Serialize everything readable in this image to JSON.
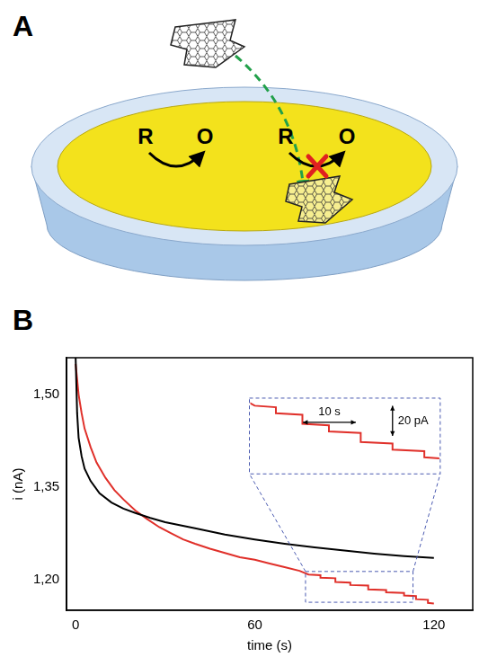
{
  "panel_a": {
    "label": "A",
    "reaction_labels": [
      "R",
      "O",
      "R",
      "O"
    ]
  },
  "chart_data": {
    "type": "line",
    "panel_label": "B",
    "x_label": "time (s)",
    "y_label": "i (nA)",
    "xlim": [
      -3,
      133
    ],
    "xticks": [
      0,
      60,
      120
    ],
    "ylim": [
      1.15,
      1.56
    ],
    "yticks": [
      {
        "value": 1.2,
        "label": "1,20"
      },
      {
        "value": 1.35,
        "label": "1,35"
      },
      {
        "value": 1.5,
        "label": "1,50"
      }
    ],
    "grid": false,
    "series": [
      {
        "color": "#000000",
        "x": [
          0,
          0.5,
          1,
          2,
          3,
          5,
          8,
          12,
          16,
          20,
          25,
          30,
          40,
          50,
          60,
          70,
          80,
          90,
          100,
          110,
          120
        ],
        "values": [
          1.56,
          1.47,
          1.43,
          1.4,
          1.38,
          1.36,
          1.34,
          1.325,
          1.315,
          1.308,
          1.3,
          1.293,
          1.283,
          1.273,
          1.265,
          1.258,
          1.252,
          1.247,
          1.242,
          1.238,
          1.235
        ]
      },
      {
        "color": "#e0302a",
        "x": [
          0,
          1,
          2,
          3,
          5,
          7,
          10,
          13,
          16,
          20,
          24,
          28,
          32,
          36,
          40,
          45,
          50,
          55,
          60,
          65,
          70,
          75,
          78,
          82,
          82,
          87,
          87,
          92,
          92,
          98,
          98,
          104,
          104,
          110,
          110,
          114,
          114,
          118,
          118,
          120
        ],
        "values": [
          1.55,
          1.5,
          1.47,
          1.445,
          1.415,
          1.39,
          1.365,
          1.345,
          1.33,
          1.312,
          1.298,
          1.285,
          1.275,
          1.265,
          1.258,
          1.25,
          1.243,
          1.236,
          1.232,
          1.226,
          1.22,
          1.214,
          1.208,
          1.207,
          1.203,
          1.202,
          1.196,
          1.195,
          1.191,
          1.19,
          1.184,
          1.183,
          1.179,
          1.178,
          1.174,
          1.173,
          1.168,
          1.167,
          1.162,
          1.161
        ]
      }
    ],
    "inset": {
      "xlim": [
        77,
        113
      ],
      "ylim": [
        1.163,
        1.213
      ],
      "scale_bars": [
        {
          "axis": "y",
          "value": 0.02,
          "label": "20 pA"
        },
        {
          "axis": "x",
          "value": 10,
          "label": "10 s"
        }
      ]
    }
  }
}
